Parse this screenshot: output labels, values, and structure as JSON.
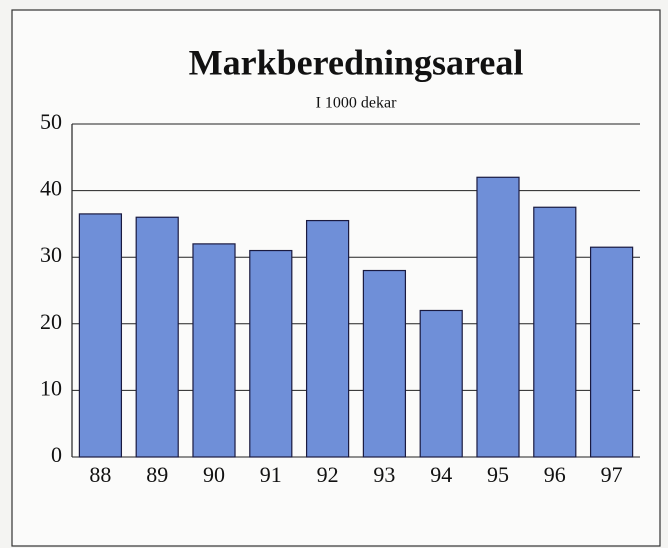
{
  "chart_data": {
    "type": "bar",
    "title": "Markberedningsareal",
    "subtitle": "I 1000 dekar",
    "categories": [
      "88",
      "89",
      "90",
      "91",
      "92",
      "93",
      "94",
      "95",
      "96",
      "97"
    ],
    "values": [
      36.5,
      36,
      32,
      31,
      35.5,
      28,
      22,
      42,
      37.5,
      31.5
    ],
    "color": "#6f8fd8",
    "ylim": [
      0,
      50
    ],
    "yticks": [
      0,
      10,
      20,
      30,
      40,
      50
    ],
    "grid": true
  }
}
